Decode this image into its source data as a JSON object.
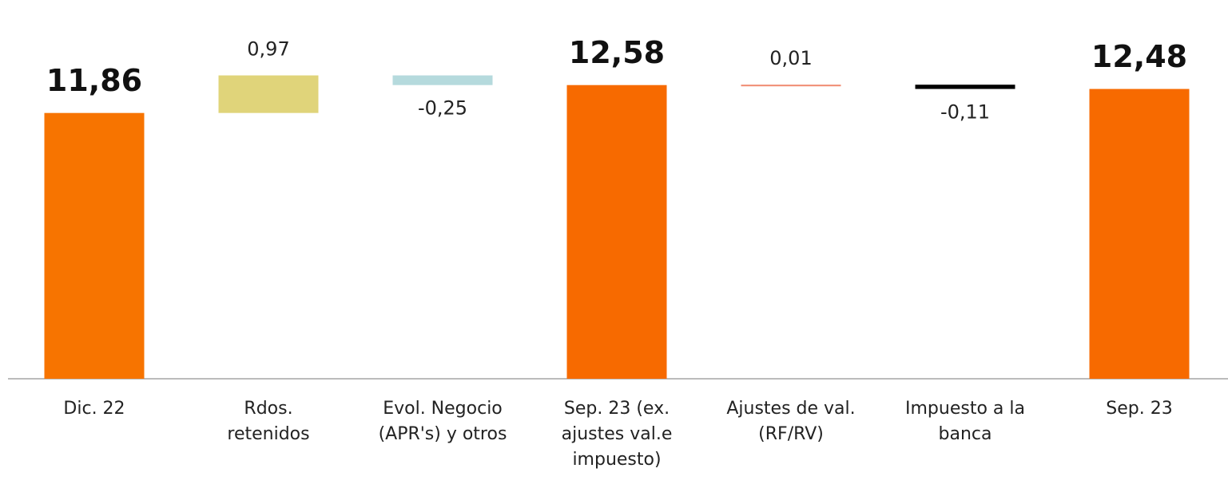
{
  "chart_data": {
    "type": "waterfall",
    "categories": [
      "Dic. 22",
      "Rdos. retenidos",
      "Evol. Negocio (APR's) y otros",
      "Sep. 23 (ex. ajustes val.e impuesto)",
      "Ajustes de val. (RF/RV)",
      "Impuesto a la banca",
      "Sep. 23"
    ],
    "values": [
      11.86,
      0.97,
      -0.25,
      12.58,
      0.01,
      -0.11,
      12.48
    ],
    "value_labels": [
      "11,86",
      "0,97",
      "-0,25",
      "12,58",
      "0,01",
      "-0,11",
      "12,48"
    ],
    "measure": [
      "total",
      "relative",
      "relative",
      "total",
      "relative",
      "relative",
      "total"
    ],
    "colors": [
      "#f77400",
      "#e0d47a",
      "#b5dadd",
      "#f76a00",
      "#f08a70",
      "#000000",
      "#f76a00"
    ],
    "ylim": [
      5,
      13.5
    ]
  }
}
